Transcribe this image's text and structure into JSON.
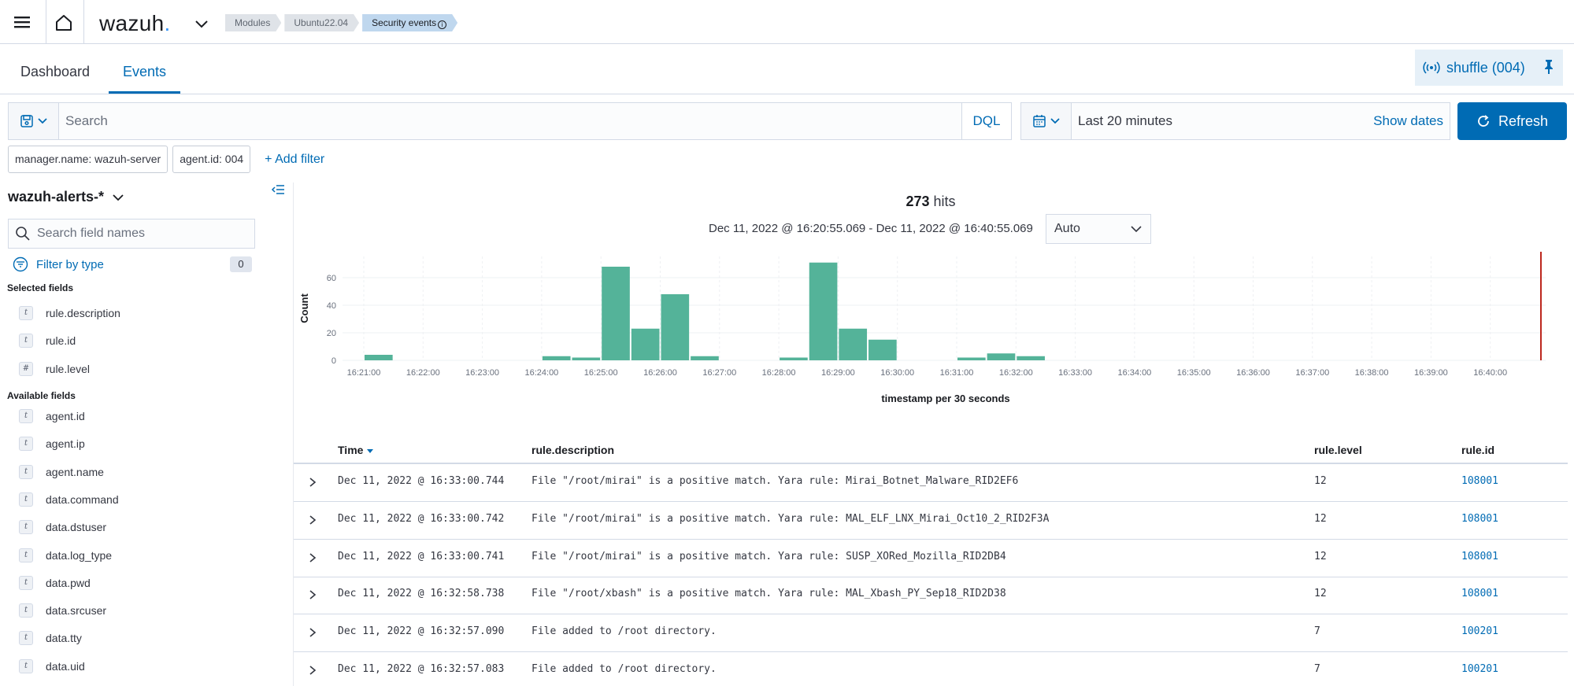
{
  "app": {
    "logo_text": "wazuh",
    "logo_dot": ".",
    "breadcrumbs": [
      "Modules",
      "Ubuntu22.04",
      "Security events"
    ],
    "breadcrumb_info_glyph": "i"
  },
  "tabs": [
    "Dashboard",
    "Events"
  ],
  "active_tab": "Events",
  "agent_chip": {
    "label": "shuffle (004)"
  },
  "search": {
    "placeholder": "Search",
    "language": "DQL"
  },
  "time": {
    "range_label": "Last 20 minutes",
    "show_dates": "Show dates",
    "refresh": "Refresh"
  },
  "filters": {
    "pills": [
      "manager.name: wazuh-server",
      "agent.id: 004"
    ],
    "add": "+ Add filter"
  },
  "sidebar": {
    "index_pattern": "wazuh-alerts-*",
    "field_search_placeholder": "Search field names",
    "filter_by_type": "Filter by type",
    "filter_count": "0",
    "selected_title": "Selected fields",
    "selected_fields": [
      {
        "type": "t",
        "name": "rule.description"
      },
      {
        "type": "t",
        "name": "rule.id"
      },
      {
        "type": "#",
        "name": "rule.level"
      }
    ],
    "available_title": "Available fields",
    "available_fields": [
      {
        "type": "t",
        "name": "agent.id"
      },
      {
        "type": "t",
        "name": "agent.ip"
      },
      {
        "type": "t",
        "name": "agent.name"
      },
      {
        "type": "t",
        "name": "data.command"
      },
      {
        "type": "t",
        "name": "data.dstuser"
      },
      {
        "type": "t",
        "name": "data.log_type"
      },
      {
        "type": "t",
        "name": "data.pwd"
      },
      {
        "type": "t",
        "name": "data.srcuser"
      },
      {
        "type": "t",
        "name": "data.tty"
      },
      {
        "type": "t",
        "name": "data.uid"
      }
    ]
  },
  "hits": {
    "count": "273",
    "label": "hits"
  },
  "date_range": "Dec 11, 2022 @ 16:20:55.069 - Dec 11, 2022 @ 16:40:55.069",
  "interval": "Auto",
  "colors": {
    "bar": "#54b399",
    "accent": "#006bb4",
    "now_line": "#bd271e"
  },
  "chart_data": {
    "type": "bar",
    "ylabel": "Count",
    "xlabel": "timestamp per 30 seconds",
    "ylim": [
      0,
      72
    ],
    "yticks": [
      0,
      20,
      40,
      60
    ],
    "xticks": [
      "16:21:00",
      "16:22:00",
      "16:23:00",
      "16:24:00",
      "16:25:00",
      "16:26:00",
      "16:27:00",
      "16:28:00",
      "16:29:00",
      "16:30:00",
      "16:31:00",
      "16:32:00",
      "16:33:00",
      "16:34:00",
      "16:35:00",
      "16:36:00",
      "16:37:00",
      "16:38:00",
      "16:39:00",
      "16:40:00"
    ],
    "bars": [
      {
        "x": "16:21:30",
        "value": 4
      },
      {
        "x": "16:24:30",
        "value": 3
      },
      {
        "x": "16:25:00",
        "value": 2
      },
      {
        "x": "16:25:30",
        "value": 68
      },
      {
        "x": "16:26:00",
        "value": 23
      },
      {
        "x": "16:26:30",
        "value": 48
      },
      {
        "x": "16:27:00",
        "value": 3
      },
      {
        "x": "16:28:30",
        "value": 2
      },
      {
        "x": "16:29:00",
        "value": 71
      },
      {
        "x": "16:29:30",
        "value": 23
      },
      {
        "x": "16:30:00",
        "value": 15
      },
      {
        "x": "16:31:30",
        "value": 2
      },
      {
        "x": "16:32:00",
        "value": 5
      },
      {
        "x": "16:32:30",
        "value": 3
      }
    ]
  },
  "table": {
    "columns": [
      "Time",
      "rule.description",
      "rule.level",
      "rule.id"
    ],
    "rows": [
      {
        "time": "Dec 11, 2022 @ 16:33:00.744",
        "desc": "File \"/root/mirai\" is a positive match. Yara rule: Mirai_Botnet_Malware_RID2EF6",
        "level": "12",
        "id": "108001"
      },
      {
        "time": "Dec 11, 2022 @ 16:33:00.742",
        "desc": "File \"/root/mirai\" is a positive match. Yara rule: MAL_ELF_LNX_Mirai_Oct10_2_RID2F3A",
        "level": "12",
        "id": "108001"
      },
      {
        "time": "Dec 11, 2022 @ 16:33:00.741",
        "desc": "File \"/root/mirai\" is a positive match. Yara rule: SUSP_XORed_Mozilla_RID2DB4",
        "level": "12",
        "id": "108001"
      },
      {
        "time": "Dec 11, 2022 @ 16:32:58.738",
        "desc": "File \"/root/xbash\" is a positive match. Yara rule: MAL_Xbash_PY_Sep18_RID2D38",
        "level": "12",
        "id": "108001"
      },
      {
        "time": "Dec 11, 2022 @ 16:32:57.090",
        "desc": "File added to /root directory.",
        "level": "7",
        "id": "100201"
      },
      {
        "time": "Dec 11, 2022 @ 16:32:57.083",
        "desc": "File added to /root directory.",
        "level": "7",
        "id": "100201"
      }
    ]
  }
}
